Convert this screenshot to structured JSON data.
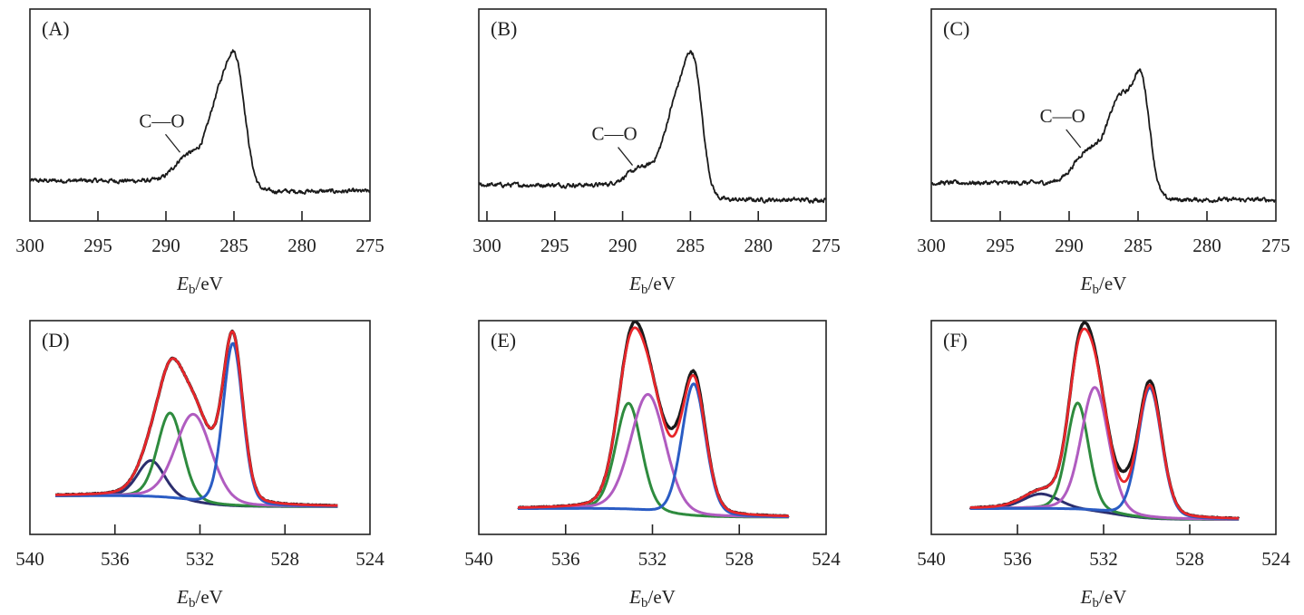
{
  "chart_data": [
    {
      "panel_label": "(A)",
      "type": "line",
      "grid": false,
      "xlabel": {
        "symbol": "E",
        "subscript": "b",
        "unit": "/eV"
      },
      "xlim": [
        300,
        275
      ],
      "ylim": [
        0,
        1
      ],
      "xticks": [
        "300",
        "295",
        "290",
        "285",
        "280",
        "275"
      ],
      "data_range": [
        300,
        275
      ],
      "baseline": {
        "left": 0.19,
        "right": 0.14,
        "step_center": 285.5
      },
      "noise": 0.007,
      "measured": {
        "color": "#1a1a1a",
        "peaks": [
          {
            "center": 284.8,
            "height": 0.5,
            "fwhm": 1.6
          },
          {
            "center": 286.1,
            "height": 0.38,
            "fwhm": 2.0
          },
          {
            "center": 288.4,
            "height": 0.12,
            "fwhm": 2.2
          }
        ]
      },
      "annotation": {
        "text": "C—O",
        "x": 288.7
      }
    },
    {
      "panel_label": "(B)",
      "type": "line",
      "grid": false,
      "xlabel": {
        "symbol": "E",
        "subscript": "b",
        "unit": "/eV"
      },
      "xlim": [
        300.6,
        275
      ],
      "ylim": [
        0,
        1
      ],
      "xticks": [
        "300",
        "295",
        "290",
        "285",
        "280",
        "275"
      ],
      "data_range": [
        300.6,
        275
      ],
      "baseline": {
        "left": 0.17,
        "right": 0.1,
        "step_center": 285.5
      },
      "noise": 0.007,
      "measured": {
        "color": "#1a1a1a",
        "peaks": [
          {
            "center": 284.7,
            "height": 0.46,
            "fwhm": 1.5
          },
          {
            "center": 285.9,
            "height": 0.42,
            "fwhm": 2.2
          },
          {
            "center": 288.6,
            "height": 0.08,
            "fwhm": 2.5
          }
        ]
      },
      "annotation": {
        "text": "C—O",
        "x": 289.0
      }
    },
    {
      "panel_label": "(C)",
      "type": "line",
      "grid": false,
      "xlabel": {
        "symbol": "E",
        "subscript": "b",
        "unit": "/eV"
      },
      "xlim": [
        300,
        275
      ],
      "ylim": [
        0,
        1
      ],
      "xticks": [
        "300",
        "295",
        "290",
        "285",
        "280",
        "275"
      ],
      "data_range": [
        300,
        275
      ],
      "baseline": {
        "left": 0.18,
        "right": 0.1,
        "step_center": 285.5
      },
      "noise": 0.007,
      "measured": {
        "color": "#1a1a1a",
        "peaks": [
          {
            "center": 284.7,
            "height": 0.45,
            "fwhm": 1.4
          },
          {
            "center": 286.2,
            "height": 0.42,
            "fwhm": 2.2
          },
          {
            "center": 288.6,
            "height": 0.15,
            "fwhm": 2.4
          }
        ]
      },
      "annotation": {
        "text": "C—O",
        "x": 288.9
      }
    },
    {
      "panel_label": "(D)",
      "type": "line",
      "grid": false,
      "xlabel": {
        "symbol": "E",
        "subscript": "b",
        "unit": "/eV"
      },
      "xlim": [
        540,
        524
      ],
      "ylim": [
        0,
        1
      ],
      "xticks": [
        "540",
        "536",
        "532",
        "528",
        "524"
      ],
      "data_range": [
        538.8,
        525.5
      ],
      "baseline": {
        "left": 0.18,
        "right": 0.13,
        "step_center": 532.5
      },
      "lorentz_fraction": 0.2,
      "components": [
        {
          "color": "#2c2e6e",
          "center": 534.3,
          "height": 0.17,
          "fwhm": 1.5
        },
        {
          "color": "#2e8b3e",
          "center": 533.4,
          "height": 0.4,
          "fwhm": 1.4
        },
        {
          "color": "#b05cc0",
          "center": 532.3,
          "height": 0.41,
          "fwhm": 2.0
        },
        {
          "color": "#2a5cc4",
          "center": 530.45,
          "height": 0.76,
          "fwhm": 1.1
        }
      ],
      "envelope_color": "#e8262a",
      "measured": {
        "color": "#1a1a1a",
        "residual": []
      }
    },
    {
      "panel_label": "(E)",
      "type": "line",
      "grid": false,
      "xlabel": {
        "symbol": "E",
        "subscript": "b",
        "unit": "/eV"
      },
      "xlim": [
        540,
        524
      ],
      "ylim": [
        0,
        1
      ],
      "xticks": [
        "540",
        "536",
        "532",
        "528",
        "524"
      ],
      "data_range": [
        538.2,
        525.7
      ],
      "baseline": {
        "left": 0.12,
        "right": 0.08,
        "step_center": 531.8
      },
      "lorentz_fraction": 0.2,
      "components": [
        {
          "color": "#2e8b3e",
          "center": 533.1,
          "height": 0.5,
          "fwhm": 1.4
        },
        {
          "color": "#b05cc0",
          "center": 532.2,
          "height": 0.55,
          "fwhm": 1.9
        },
        {
          "color": "#2a5cc4",
          "center": 530.1,
          "height": 0.62,
          "fwhm": 1.3
        }
      ],
      "envelope_color": "#e8262a",
      "measured": {
        "color": "#1a1a1a",
        "residual": [
          {
            "center": 532.7,
            "height": 0.03,
            "fwhm": 0.8
          },
          {
            "center": 531.0,
            "height": 0.04,
            "fwhm": 0.8
          },
          {
            "center": 530.0,
            "height": 0.02,
            "fwhm": 0.8
          }
        ]
      }
    },
    {
      "panel_label": "(F)",
      "type": "line",
      "grid": false,
      "xlabel": {
        "symbol": "E",
        "subscript": "b",
        "unit": "/eV"
      },
      "xlim": [
        540,
        524
      ],
      "ylim": [
        0,
        1
      ],
      "xticks": [
        "540",
        "536",
        "532",
        "528",
        "524"
      ],
      "data_range": [
        538.2,
        525.7
      ],
      "baseline": {
        "left": 0.12,
        "right": 0.07,
        "step_center": 531.5
      },
      "lorentz_fraction": 0.2,
      "components": [
        {
          "color": "#2c2e6e",
          "center": 534.9,
          "height": 0.07,
          "fwhm": 2.0
        },
        {
          "color": "#2e8b3e",
          "center": 533.2,
          "height": 0.5,
          "fwhm": 1.2
        },
        {
          "color": "#b05cc0",
          "center": 532.4,
          "height": 0.58,
          "fwhm": 1.5
        },
        {
          "color": "#2a5cc4",
          "center": 529.85,
          "height": 0.61,
          "fwhm": 1.3
        }
      ],
      "envelope_color": "#e8262a",
      "measured": {
        "color": "#1a1a1a",
        "residual": [
          {
            "center": 532.8,
            "height": 0.03,
            "fwhm": 0.8
          },
          {
            "center": 531.0,
            "height": 0.05,
            "fwhm": 0.8
          },
          {
            "center": 529.8,
            "height": 0.02,
            "fwhm": 0.8
          }
        ]
      }
    }
  ]
}
